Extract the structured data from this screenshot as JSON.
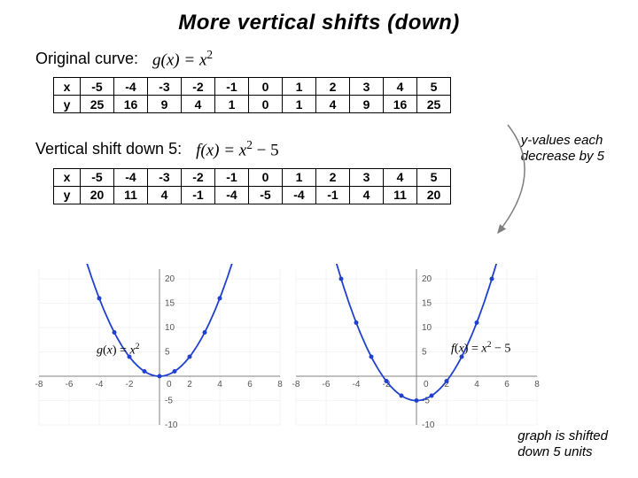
{
  "title": "More vertical shifts (down)",
  "orig_label": "Original curve:",
  "orig_formula_lhs": "g(x) =",
  "orig_formula_rhs": "x",
  "orig_exp": "2",
  "shift_label": "Vertical shift down 5:",
  "shift_formula_lhs": "f(x) =",
  "shift_formula_rhs": "x",
  "shift_exp": "2",
  "shift_suffix": " − 5",
  "table1": {
    "headers": [
      "x",
      "y"
    ],
    "x": [
      "-5",
      "-4",
      "-3",
      "-2",
      "-1",
      "0",
      "1",
      "2",
      "3",
      "4",
      "5"
    ],
    "y": [
      "25",
      "16",
      "9",
      "4",
      "1",
      "0",
      "1",
      "4",
      "9",
      "16",
      "25"
    ]
  },
  "table2": {
    "headers": [
      "x",
      "y"
    ],
    "x": [
      "-5",
      "-4",
      "-3",
      "-2",
      "-1",
      "0",
      "1",
      "2",
      "3",
      "4",
      "5"
    ],
    "y": [
      "20",
      "11",
      "4",
      "-1",
      "-4",
      "-5",
      "-4",
      "-1",
      "4",
      "11",
      "20"
    ]
  },
  "annot1_l1": "y-values each",
  "annot1_l2": "decrease by 5",
  "annot2_l1": "graph is shifted",
  "annot2_l2": "down 5 units",
  "chart1": {
    "type": "line-scatter",
    "xlim": [
      -8,
      8
    ],
    "ylim": [
      -10,
      22
    ],
    "xticks": [
      -8,
      -6,
      -4,
      -2,
      0,
      2,
      4,
      6,
      8
    ],
    "yticks": [
      -10,
      -5,
      0,
      5,
      10,
      15,
      20
    ],
    "points_x": [
      -5,
      -4,
      -3,
      -2,
      -1,
      0,
      1,
      2,
      3,
      4,
      5
    ],
    "points_y": [
      25,
      16,
      9,
      4,
      1,
      0,
      1,
      4,
      9,
      16,
      25
    ],
    "curve_color": "#2040d0",
    "axis_color": "#808080",
    "marker_color": "#2040d0",
    "tick_font": 10,
    "label": "g(x) = x²"
  },
  "chart2": {
    "type": "line-scatter",
    "xlim": [
      -8,
      8
    ],
    "ylim": [
      -10,
      22
    ],
    "xticks": [
      -8,
      -6,
      -4,
      -2,
      0,
      2,
      4,
      6,
      8
    ],
    "yticks": [
      -10,
      -5,
      0,
      5,
      10,
      15,
      20
    ],
    "points_x": [
      -5,
      -4,
      -3,
      -2,
      -1,
      0,
      1,
      2,
      3,
      4,
      5
    ],
    "points_y": [
      20,
      11,
      4,
      -1,
      -4,
      -5,
      -4,
      -1,
      4,
      11,
      20
    ],
    "curve_color": "#2040d0",
    "axis_color": "#808080",
    "marker_color": "#2040d0",
    "tick_font": 10,
    "label": "f(x) = x² − 5"
  },
  "arrow_color": "#808080"
}
